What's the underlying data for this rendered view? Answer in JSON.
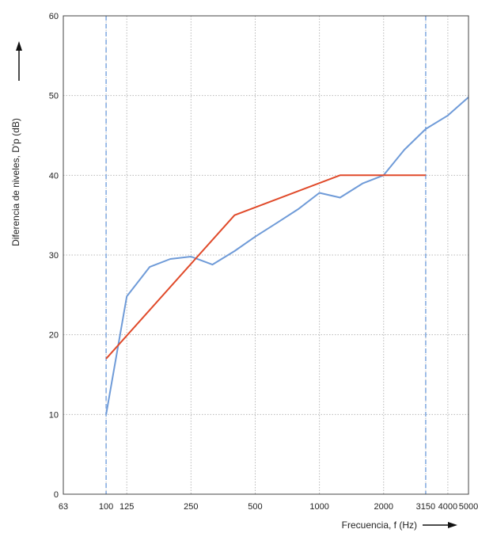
{
  "chart_data": {
    "type": "line",
    "title": "",
    "xlabel": "Frecuencia, f (Hz)",
    "ylabel": "Diferencia de niveles, D'p (dB)",
    "x_scale": "log",
    "xlim": [
      63,
      5000
    ],
    "ylim": [
      0,
      60
    ],
    "x_ticks": [
      "63",
      "100",
      "125",
      "250",
      "500",
      "1000",
      "2000",
      "3150",
      "4000",
      "5000"
    ],
    "y_ticks": [
      "0",
      "10",
      "20",
      "30",
      "40",
      "50",
      "60"
    ],
    "grid": true,
    "series": [
      {
        "color": "#6f9bd8",
        "x": [
          100,
          125,
          160,
          200,
          250,
          315,
          400,
          500,
          630,
          800,
          1000,
          1250,
          1600,
          2000,
          2500,
          3150,
          4000,
          5000
        ],
        "y": [
          10,
          24.8,
          28.5,
          29.5,
          29.8,
          28.8,
          30.5,
          32.3,
          34,
          35.8,
          37.8,
          37.2,
          39,
          40,
          43.2,
          45.8,
          47.5,
          49.8
        ]
      },
      {
        "color": "#e04a2a",
        "x": [
          100,
          400,
          1250,
          3150
        ],
        "y": [
          17,
          35,
          40,
          40
        ]
      }
    ],
    "reference_lines_x": [
      100,
      3150
    ]
  }
}
